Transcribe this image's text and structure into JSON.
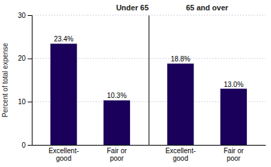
{
  "chart_data": [
    {
      "type": "bar",
      "title": "Under 65",
      "categories": [
        "Excellent-\ngood",
        "Fair or\npoor"
      ],
      "values": [
        23.4,
        10.3
      ],
      "value_labels": [
        "23.4%",
        "10.3%"
      ],
      "data_labels": true,
      "color": "#1a005a",
      "ylabel": "Percent of total expense",
      "ylim": [
        0,
        30
      ],
      "yticks": [
        0,
        10,
        20,
        30
      ],
      "grid": true
    },
    {
      "type": "bar",
      "title": "65 and over",
      "categories": [
        "Excellent-\ngood",
        "Fair or\npoor"
      ],
      "values": [
        18.8,
        13.0
      ],
      "value_labels": [
        "18.8%",
        "13.0%"
      ],
      "data_labels": true,
      "color": "#1a005a",
      "ylim": [
        0,
        30
      ],
      "yticks": [
        0,
        10,
        20,
        30
      ],
      "grid": true,
      "tick_labels": "x"
    }
  ]
}
